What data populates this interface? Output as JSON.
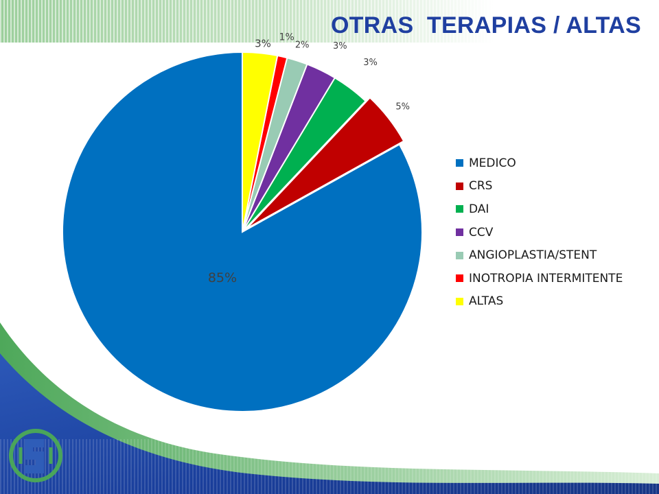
{
  "slide": {
    "title": "OTRAS  TERAPIAS / ALTAS",
    "title_color": "#1f3fa0"
  },
  "chart_data": {
    "type": "pie",
    "title": "OTRAS  TERAPIAS / ALTAS",
    "start_angle_deg": 0,
    "direction": "counterclockwise",
    "legend_position": "right",
    "exploded_slice": "CRS",
    "slices": [
      {
        "name": "MEDICO",
        "value": 85,
        "label": "85%",
        "color": "#0070c0"
      },
      {
        "name": "CRS",
        "value": 5,
        "label": "5%",
        "color": "#c00000"
      },
      {
        "name": "DAI",
        "value": 3.5,
        "label": "3%",
        "color": "#00b050"
      },
      {
        "name": "CCV",
        "value": 2.8,
        "label": "3%",
        "color": "#7030a0"
      },
      {
        "name": "ANGIOPLASTIA/STENT",
        "value": 1.9,
        "label": "2%",
        "color": "#99cbb4"
      },
      {
        "name": "INOTROPIA INTERMITENTE",
        "value": 0.9,
        "label": "1%",
        "color": "#ff0000"
      },
      {
        "name": "ALTAS",
        "value": 3.2,
        "label": "3%",
        "color": "#ffff00"
      }
    ]
  }
}
